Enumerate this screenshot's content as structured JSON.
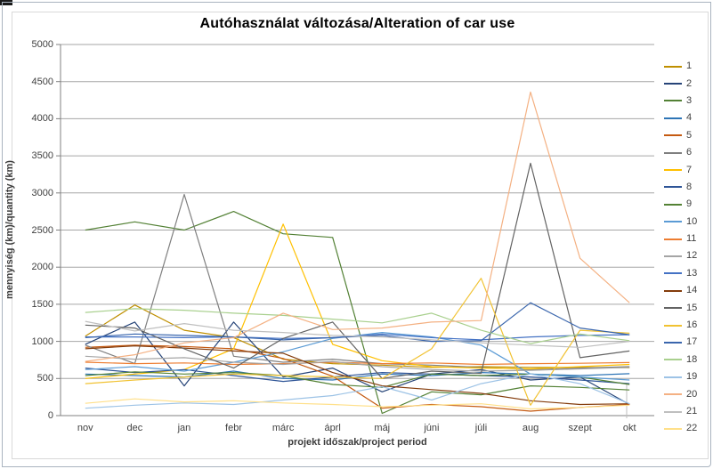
{
  "window": {
    "corner_artifact": "black screenshot mark"
  },
  "chart_data": {
    "type": "line",
    "title": "Autóhasználat változása/Alteration of car use",
    "xlabel": "projekt időszak/project period",
    "ylabel": "mennyiség (km)/quantity (km)",
    "categories": [
      "nov",
      "dec",
      "jan",
      "febr",
      "márc",
      "áprl",
      "máj",
      "júni",
      "júli",
      "aug",
      "szept",
      "okt"
    ],
    "ylim": [
      0,
      5000
    ],
    "ytick_step": 500,
    "grid": true,
    "legend_position": "right",
    "axis_color": "#808080",
    "gridline_color": "#a6a6a6",
    "series": [
      {
        "name": "1",
        "color": "#BF8F00",
        "values": [
          1070,
          1490,
          1150,
          1050,
          760,
          700,
          680,
          650,
          660,
          650,
          650,
          645
        ]
      },
      {
        "name": "2",
        "color": "#264478",
        "values": [
          960,
          1260,
          400,
          1260,
          520,
          640,
          320,
          560,
          620,
          480,
          520,
          150
        ]
      },
      {
        "name": "3",
        "color": "#538135",
        "values": [
          2500,
          2610,
          2500,
          2750,
          2450,
          2400,
          30,
          320,
          280,
          400,
          380,
          345
        ]
      },
      {
        "name": "4",
        "color": "#2E75B6",
        "values": [
          560,
          540,
          520,
          600,
          500,
          480,
          560,
          540,
          580,
          560,
          540,
          565
        ]
      },
      {
        "name": "5",
        "color": "#C55A11",
        "values": [
          920,
          950,
          930,
          900,
          770,
          530,
          100,
          150,
          120,
          60,
          110,
          150
        ]
      },
      {
        "name": "6",
        "color": "#7F7F7F",
        "values": [
          950,
          700,
          2980,
          800,
          720,
          760,
          700,
          680,
          650,
          620,
          640,
          660
        ]
      },
      {
        "name": "7",
        "color": "#FFC000",
        "values": [
          500,
          560,
          620,
          900,
          2580,
          960,
          740,
          660,
          640,
          630,
          660,
          690
        ]
      },
      {
        "name": "8",
        "color": "#2F5597",
        "values": [
          640,
          580,
          620,
          540,
          460,
          520,
          580,
          560,
          540,
          520,
          480,
          430
        ]
      },
      {
        "name": "9",
        "color": "#548235",
        "values": [
          540,
          590,
          560,
          580,
          540,
          420,
          380,
          560,
          540,
          560,
          520,
          420
        ]
      },
      {
        "name": "10",
        "color": "#5B9BD5",
        "values": [
          620,
          660,
          600,
          720,
          860,
          1040,
          1120,
          1060,
          950,
          560,
          520,
          480
        ]
      },
      {
        "name": "11",
        "color": "#ED7D31",
        "values": [
          720,
          700,
          710,
          690,
          700,
          720,
          700,
          710,
          690,
          700,
          705,
          715
        ]
      },
      {
        "name": "12",
        "color": "#A5A5A5",
        "values": [
          800,
          760,
          780,
          720,
          690,
          730,
          660,
          620,
          600,
          610,
          630,
          650
        ]
      },
      {
        "name": "13",
        "color": "#4472C4",
        "values": [
          1060,
          1060,
          1050,
          1060,
          1040,
          1050,
          1100,
          1050,
          1020,
          1060,
          1080,
          1090
        ]
      },
      {
        "name": "14",
        "color": "#843C0C",
        "values": [
          900,
          940,
          910,
          870,
          840,
          580,
          400,
          350,
          300,
          200,
          150,
          160
        ]
      },
      {
        "name": "15",
        "color": "#636363",
        "values": [
          1220,
          1180,
          900,
          640,
          1040,
          1260,
          500,
          600,
          570,
          3400,
          780,
          870
        ]
      },
      {
        "name": "16",
        "color": "#F1C232",
        "values": [
          430,
          480,
          520,
          560,
          540,
          520,
          500,
          900,
          1850,
          140,
          1150,
          1110
        ]
      },
      {
        "name": "17",
        "color": "#3A66AD",
        "values": [
          1050,
          1100,
          1080,
          1060,
          1020,
          1050,
          1080,
          1000,
          1010,
          1520,
          1180,
          1090
        ]
      },
      {
        "name": "18",
        "color": "#A9D08E",
        "values": [
          1390,
          1440,
          1420,
          1380,
          1350,
          1300,
          1250,
          1380,
          1150,
          970,
          1100,
          1010
        ]
      },
      {
        "name": "19",
        "color": "#9DC3E6",
        "values": [
          100,
          140,
          170,
          150,
          210,
          270,
          390,
          210,
          430,
          560,
          430,
          160
        ]
      },
      {
        "name": "20",
        "color": "#F4B183",
        "values": [
          730,
          820,
          980,
          1050,
          1380,
          1160,
          1180,
          1260,
          1280,
          4360,
          2120,
          1520
        ]
      },
      {
        "name": "21",
        "color": "#BFBFBF",
        "values": [
          1270,
          1140,
          1240,
          1150,
          1120,
          1080,
          1060,
          1020,
          980,
          950,
          920,
          1000
        ]
      },
      {
        "name": "22",
        "color": "#FFE08A",
        "values": [
          165,
          225,
          185,
          200,
          170,
          150,
          120,
          140,
          160,
          90,
          110,
          140
        ]
      }
    ]
  }
}
